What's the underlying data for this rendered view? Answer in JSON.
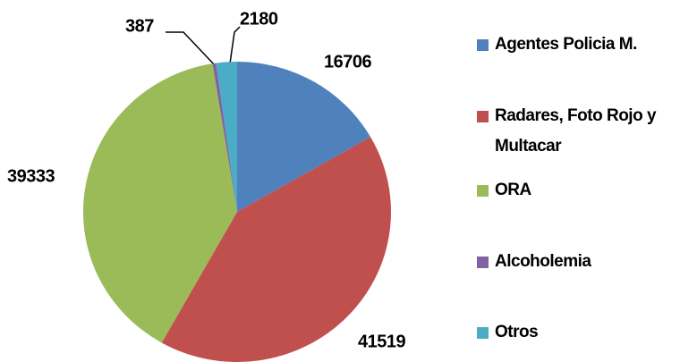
{
  "chart_data": {
    "type": "pie",
    "categories": [
      "Agentes Policia M.",
      "Radares, Foto Rojo y Multacar",
      "ORA",
      "Alcoholemia",
      "Otros"
    ],
    "values": [
      16706,
      41519,
      39333,
      387,
      2180
    ],
    "colors": [
      "#4f81bd",
      "#c0504d",
      "#9bbb59",
      "#8064a2",
      "#4bacc6"
    ],
    "legend": "right"
  }
}
